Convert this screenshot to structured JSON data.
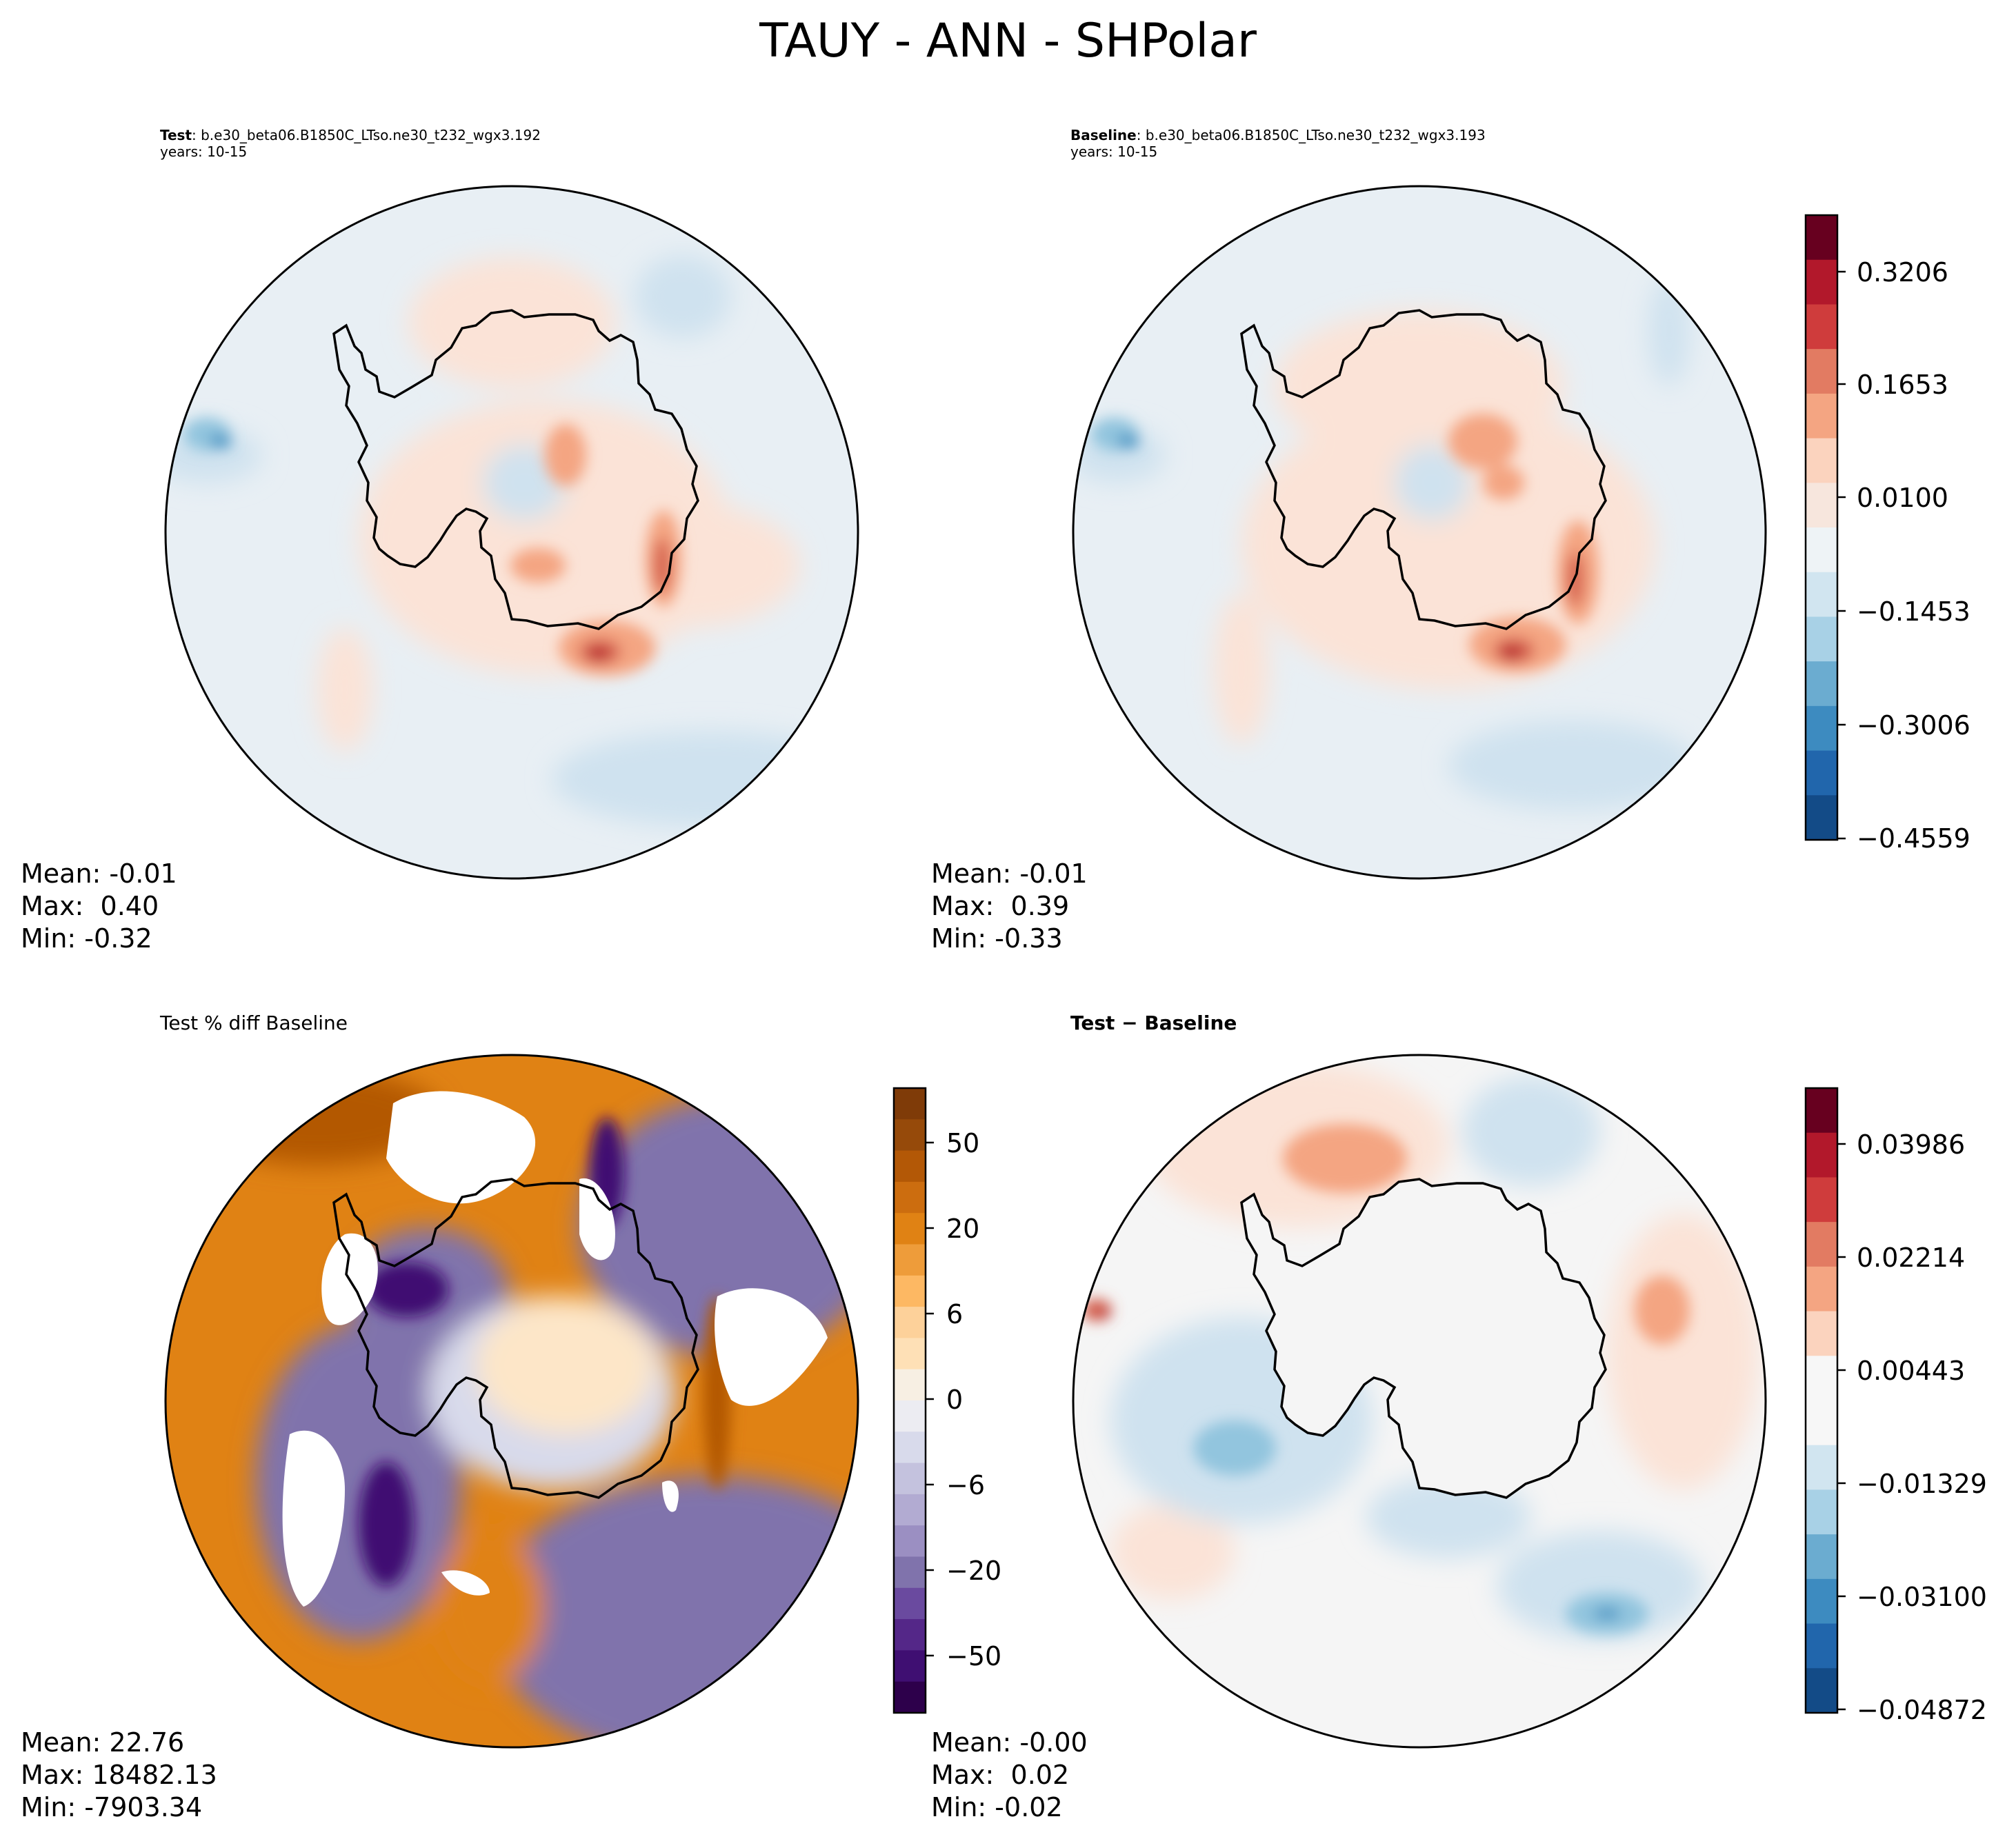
{
  "figure": {
    "title": "TAUY - ANN - SHPolar"
  },
  "panels": [
    {
      "id": "test",
      "title_bold": "Test",
      "title_rest": ": b.e30_beta06.B1850C_LTso.ne30_t232_wgx3.192",
      "subtitle": "years: 10-15",
      "stats": {
        "mean": "Mean: -0.01",
        "max": "Max:  0.40",
        "min": "Min: -0.32"
      }
    },
    {
      "id": "baseline",
      "title_bold": "Baseline",
      "title_rest": ": b.e30_beta06.B1850C_LTso.ne30_t232_wgx3.193",
      "subtitle": "years: 10-15",
      "stats": {
        "mean": "Mean: -0.01",
        "max": "Max:  0.39",
        "min": "Min: -0.33"
      }
    },
    {
      "id": "pctdiff",
      "title_plain": "Test % diff Baseline",
      "stats": {
        "mean": "Mean: 22.76",
        "max": "Max: 18482.13",
        "min": "Min: -7903.34"
      }
    },
    {
      "id": "diff",
      "title_bold": "Test − Baseline",
      "stats": {
        "mean": "Mean: -0.00",
        "max": "Max:  0.02",
        "min": "Min: -0.02"
      }
    }
  ],
  "chart_data": [
    {
      "type": "heatmap",
      "projection": "south-polar-stereographic",
      "panel": "test",
      "colormap": "RdBu_r",
      "levels": [
        -0.4559,
        -0.3006,
        -0.1453,
        0.01,
        0.1653,
        0.3206
      ],
      "mean": -0.01,
      "max": 0.4,
      "min": -0.32
    },
    {
      "type": "heatmap",
      "projection": "south-polar-stereographic",
      "panel": "baseline",
      "colormap": "RdBu_r",
      "levels": [
        -0.4559,
        -0.3006,
        -0.1453,
        0.01,
        0.1653,
        0.3206
      ],
      "mean": -0.01,
      "max": 0.39,
      "min": -0.33
    },
    {
      "type": "heatmap",
      "projection": "south-polar-stereographic",
      "panel": "pctdiff",
      "colormap": "PuOr_r",
      "levels": [
        -50,
        -20,
        -6,
        0,
        6,
        20,
        50
      ],
      "mean": 22.76,
      "max": 18482.13,
      "min": -7903.34
    },
    {
      "type": "heatmap",
      "projection": "south-polar-stereographic",
      "panel": "diff",
      "colormap": "RdBu_r",
      "levels": [
        -0.04872,
        -0.031,
        -0.01329,
        0.00443,
        0.02214,
        0.03986
      ],
      "mean": -0.0,
      "max": 0.02,
      "min": -0.02
    }
  ],
  "colorbars": {
    "top": {
      "ticks": [
        "0.3206",
        "0.1653",
        "0.0100",
        "−0.1453",
        "−0.3006",
        "−0.4559"
      ],
      "colors": [
        "#67001f",
        "#b2182b",
        "#cf3c3c",
        "#e27b62",
        "#f4a582",
        "#fbd3be",
        "#f7e6dd",
        "#eef3f6",
        "#d1e5f0",
        "#a8d1e6",
        "#6bacd0",
        "#3d8bc0",
        "#2166ac",
        "#134b87"
      ]
    },
    "pctdiff": {
      "ticks": [
        "50",
        "20",
        "6",
        "0",
        "−6",
        "−20",
        "−50"
      ],
      "colors": [
        "#7f3b08",
        "#964a0a",
        "#b35806",
        "#cc6d0f",
        "#e08214",
        "#ee9c3a",
        "#fdb863",
        "#fdd19a",
        "#fee0b6",
        "#f7efe3",
        "#ececf2",
        "#d8daeb",
        "#c4c2de",
        "#b2abd2",
        "#9b8fc2",
        "#8073ac",
        "#6a4a9f",
        "#542788",
        "#3f0f72",
        "#2d004b"
      ]
    },
    "diff": {
      "ticks": [
        "0.03986",
        "0.02214",
        "0.00443",
        "−0.01329",
        "−0.03100",
        "−0.04872"
      ],
      "colors": [
        "#67001f",
        "#b2182b",
        "#cf3c3c",
        "#e27b62",
        "#f4a582",
        "#fbd3be",
        "#f7f7f7",
        "#f7f7f7",
        "#d1e5f0",
        "#a8d1e6",
        "#6bacd0",
        "#3d8bc0",
        "#2166ac",
        "#134b87"
      ]
    }
  },
  "colors": {
    "ocean_top": "#e8eff4",
    "warm_light": "#fbe3d7",
    "warm_mid": "#f4a582",
    "warm_dark": "#d6604d",
    "warm_max": "#b2182b",
    "cool_light": "#cfe2ef",
    "cool_mid": "#92c5de",
    "cool_dark": "#4393c3",
    "diff_bg": "#f5f5f5",
    "pct_orange": "#e08214",
    "pct_orange_dark": "#b35806",
    "pct_purple": "#8073ac",
    "pct_purple_dark": "#3f0f72",
    "pct_light": "#d8daeb",
    "pct_cream": "#fde6c8"
  }
}
